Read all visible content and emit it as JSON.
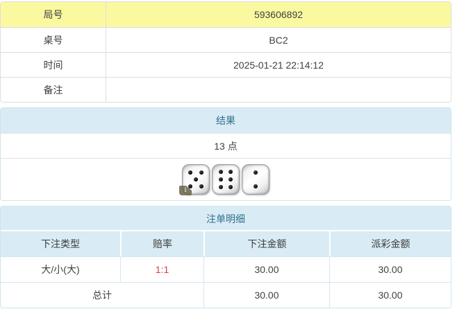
{
  "info_table": {
    "rows": [
      {
        "label": "局号",
        "value": "593606892"
      },
      {
        "label": "桌号",
        "value": "BC2"
      },
      {
        "label": "时间",
        "value": "2025-01-21 22:14:12"
      },
      {
        "label": "备注",
        "value": ""
      }
    ]
  },
  "result_panel": {
    "title": "结果",
    "points_text": "13 点",
    "dice_values": [
      5,
      6,
      2
    ],
    "badge_text": "i"
  },
  "bet_panel": {
    "title": "注单明细",
    "columns": [
      "下注类型",
      "赔率",
      "下注金额",
      "派彩金额"
    ],
    "rows": [
      {
        "bet_type": "大/小(大)",
        "odds": "1:1",
        "bet_amount": "30.00",
        "payout_amount": "30.00"
      }
    ],
    "total": {
      "label": "总计",
      "bet_amount": "30.00",
      "payout_amount": "30.00"
    }
  },
  "colors": {
    "highlight_yellow": "#faf9a0",
    "panel_header_bg": "#d9ebf4",
    "panel_header_text": "#31708f",
    "odds_red": "#e4393c"
  }
}
